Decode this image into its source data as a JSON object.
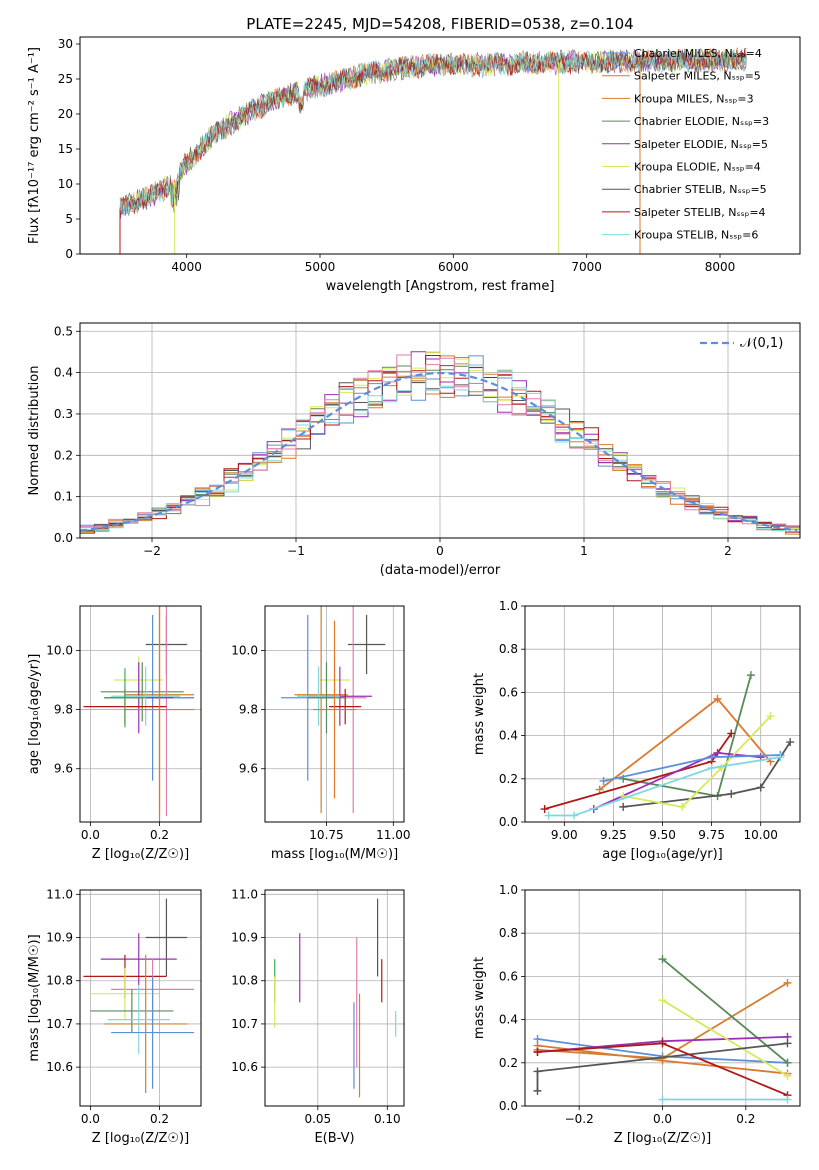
{
  "colors": {
    "Chabrier MILES": "#5b8fd9",
    "Salpeter MILES": "#e0772a",
    "Kroupa MILES": "#d08030",
    "Chabrier ELODIE": "#5a8a5a",
    "Salpeter ELODIE": "#9a2fb5",
    "Kroupa ELODIE": "#d6e95a",
    "Chabrier STELIB": "#555555",
    "Salpeter STELIB": "#b01818",
    "Kroupa STELIB": "#7fd8dd",
    "extra1": "#e07fa8",
    "extra2": "#44aa55",
    "normal": "#5b8fd9"
  },
  "chart_data": [
    {
      "id": "spectrum",
      "type": "line",
      "title": "PLATE=2245, MJD=54208, FIBERID=0538, z=0.104",
      "xlabel": "wavelength [Angstrom, rest frame]",
      "ylabel": "Flux [fλ10⁻¹⁷ erg cm⁻² s⁻¹ A⁻¹]",
      "xlim": [
        3200,
        8600
      ],
      "ylim": [
        0,
        31
      ],
      "xticks": [
        4000,
        5000,
        6000,
        7000,
        8000
      ],
      "yticks": [
        0,
        5,
        10,
        15,
        20,
        25,
        30
      ],
      "legend_position": "top-right",
      "legend": [
        {
          "name": "Chabrier MILES, Nₛₛₚ=4",
          "color": "Chabrier MILES"
        },
        {
          "name": "Salpeter MILES, Nₛₛₚ=5",
          "color": "Salpeter MILES"
        },
        {
          "name": "Kroupa MILES, Nₛₛₚ=3",
          "color": "Kroupa MILES"
        },
        {
          "name": "Chabrier ELODIE, Nₛₛₚ=3",
          "color": "Chabrier ELODIE"
        },
        {
          "name": "Salpeter ELODIE, Nₛₛₚ=5",
          "color": "Salpeter ELODIE"
        },
        {
          "name": "Kroupa ELODIE, Nₛₛₚ=4",
          "color": "Kroupa ELODIE"
        },
        {
          "name": "Chabrier STELIB, Nₛₛₚ=5",
          "color": "Chabrier STELIB"
        },
        {
          "name": "Salpeter STELIB, Nₛₛₚ=4",
          "color": "Salpeter STELIB"
        },
        {
          "name": "Kroupa STELIB, Nₛₛₚ=6",
          "color": "Kroupa STELIB"
        }
      ],
      "continuum": [
        [
          3500,
          6.5
        ],
        [
          3700,
          8
        ],
        [
          3900,
          10
        ],
        [
          4000,
          13
        ],
        [
          4200,
          17
        ],
        [
          4400,
          19.5
        ],
        [
          4600,
          21.5
        ],
        [
          4800,
          23
        ],
        [
          5000,
          24
        ],
        [
          5200,
          25
        ],
        [
          5400,
          26
        ],
        [
          5600,
          26.5
        ],
        [
          5800,
          27
        ],
        [
          6000,
          27
        ],
        [
          6200,
          27
        ],
        [
          6400,
          27.2
        ],
        [
          6600,
          27.3
        ],
        [
          6800,
          27.4
        ],
        [
          7000,
          27.4
        ],
        [
          7200,
          27.5
        ],
        [
          7400,
          27.5
        ],
        [
          7600,
          27.5
        ],
        [
          7800,
          27.6
        ],
        [
          8000,
          27.7
        ],
        [
          8200,
          27.7
        ]
      ],
      "x_range": [
        3500,
        8200
      ]
    },
    {
      "id": "residuals",
      "type": "bar",
      "xlabel": "(data-model)/error",
      "ylabel": "Normed distribution",
      "xlim": [
        -2.5,
        2.5
      ],
      "ylim": [
        0,
        0.52
      ],
      "xticks": [
        -2,
        -1,
        0,
        1,
        2
      ],
      "yticks": [
        0.0,
        0.1,
        0.2,
        0.3,
        0.4,
        0.5
      ],
      "grid": true,
      "legend_position": "top-right",
      "legend": [
        {
          "name": "𝒩(0,1)",
          "color": "normal"
        }
      ],
      "bin_width": 0.1,
      "reference_curve": "normal distribution N(0,1), dashed"
    },
    {
      "id": "age_vs_Z",
      "type": "scatter",
      "xlabel": "Z [log₁₀(Z/Z☉)]",
      "ylabel": "age  [log₁₀(age/yr)]",
      "xlim": [
        -0.03,
        0.32
      ],
      "ylim": [
        9.42,
        10.15
      ],
      "xticks": [
        0.0,
        0.2
      ],
      "yticks": [
        9.6,
        9.8,
        10.0
      ],
      "grid": true,
      "points": [
        {
          "x": 0.22,
          "y": 10.02,
          "xerr": 0.06,
          "yerr": 0.1,
          "color": "Chabrier STELIB"
        },
        {
          "x": 0.14,
          "y": 9.9,
          "xerr": 0.07,
          "yerr": 0.08,
          "color": "Kroupa ELODIE"
        },
        {
          "x": 0.15,
          "y": 9.86,
          "xerr": 0.12,
          "yerr": 0.1,
          "color": "Chabrier ELODIE"
        },
        {
          "x": 0.2,
          "y": 9.85,
          "xerr": 0.1,
          "yerr": 0.4,
          "color": "Kroupa MILES"
        },
        {
          "x": 0.22,
          "y": 9.84,
          "xerr": 0.08,
          "yerr": 0.4,
          "color": "Extra1"
        },
        {
          "x": 0.18,
          "y": 9.84,
          "xerr": 0.12,
          "yerr": 0.28,
          "color": "Chabrier MILES"
        },
        {
          "x": 0.14,
          "y": 9.84,
          "xerr": 0.1,
          "yerr": 0.12,
          "color": "Salpeter ELODIE"
        },
        {
          "x": 0.16,
          "y": 9.845,
          "xerr": 0.1,
          "yerr": 0.1,
          "color": "Kroupa STELIB"
        },
        {
          "x": 0.1,
          "y": 9.81,
          "xerr": 0.12,
          "yerr": 0.06,
          "color": "Salpeter STELIB"
        },
        {
          "x": 0.2,
          "y": 9.8,
          "xerr": 0.1,
          "yerr": 0.38,
          "color": "Salpeter MILES"
        },
        {
          "x": 0.1,
          "y": 9.84,
          "xerr": 0.06,
          "yerr": 0.1,
          "color": "extra2"
        }
      ]
    },
    {
      "id": "age_vs_mass",
      "type": "scatter",
      "xlabel": "mass [log₁₀(M/M☉)]",
      "ylabel": "",
      "xlim": [
        10.52,
        11.04
      ],
      "ylim": [
        9.42,
        10.15
      ],
      "xticks": [
        10.75,
        11.0
      ],
      "yticks": [
        9.6,
        9.8,
        10.0
      ],
      "grid": true,
      "points": [
        {
          "x": 10.9,
          "y": 10.02,
          "xerr": 0.07,
          "yerr": 0.1,
          "color": "Chabrier STELIB"
        },
        {
          "x": 10.78,
          "y": 9.9,
          "xerr": 0.06,
          "yerr": 0.08,
          "color": "Kroupa ELODIE"
        },
        {
          "x": 10.73,
          "y": 9.85,
          "xerr": 0.1,
          "yerr": 0.4,
          "color": "Kroupa MILES"
        },
        {
          "x": 10.85,
          "y": 9.84,
          "xerr": 0.05,
          "yerr": 0.39,
          "color": "Extra1"
        },
        {
          "x": 10.68,
          "y": 9.84,
          "xerr": 0.1,
          "yerr": 0.28,
          "color": "Chabrier MILES"
        },
        {
          "x": 10.8,
          "y": 9.845,
          "xerr": 0.12,
          "yerr": 0.1,
          "color": "Salpeter ELODIE"
        },
        {
          "x": 10.72,
          "y": 9.845,
          "xerr": 0.08,
          "yerr": 0.1,
          "color": "Kroupa STELIB"
        },
        {
          "x": 10.82,
          "y": 9.81,
          "xerr": 0.06,
          "yerr": 0.06,
          "color": "Salpeter STELIB"
        },
        {
          "x": 10.75,
          "y": 9.84,
          "xerr": 0.07,
          "yerr": 0.12,
          "color": "Chabrier ELODIE"
        },
        {
          "x": 10.78,
          "y": 9.8,
          "xerr": 0.08,
          "yerr": 0.3,
          "color": "Salpeter MILES"
        }
      ]
    },
    {
      "id": "mass_weight_vs_age",
      "type": "line",
      "xlabel": "age  [log₁₀(age/yr)]",
      "ylabel": "mass weight",
      "xlim": [
        8.8,
        10.2
      ],
      "ylim": [
        0,
        1
      ],
      "xticks": [
        9.0,
        9.25,
        9.5,
        9.75,
        10.0
      ],
      "yticks": [
        0.0,
        0.2,
        0.4,
        0.6,
        0.8,
        1.0
      ],
      "grid": true,
      "series": [
        {
          "color": "Salpeter MILES",
          "x": [
            9.18,
            9.78,
            10.05
          ],
          "y": [
            0.15,
            0.57,
            0.28
          ]
        },
        {
          "color": "Chabrier ELODIE",
          "x": [
            9.3,
            9.78,
            9.95
          ],
          "y": [
            0.2,
            0.12,
            0.68
          ]
        },
        {
          "color": "Chabrier STELIB",
          "x": [
            9.3,
            9.85,
            10.0,
            10.15
          ],
          "y": [
            0.07,
            0.13,
            0.16,
            0.37
          ]
        },
        {
          "color": "Salpeter STELIB",
          "x": [
            8.9,
            9.75,
            9.85
          ],
          "y": [
            0.06,
            0.28,
            0.41
          ]
        },
        {
          "color": "Salpeter ELODIE",
          "x": [
            9.15,
            9.78,
            10.0
          ],
          "y": [
            0.06,
            0.32,
            0.3
          ]
        },
        {
          "color": "Kroupa ELODIE",
          "x": [
            9.3,
            9.6,
            9.8,
            10.05
          ],
          "y": [
            0.12,
            0.07,
            0.25,
            0.49
          ]
        },
        {
          "color": "Chabrier MILES",
          "x": [
            9.2,
            9.75,
            10.1
          ],
          "y": [
            0.19,
            0.3,
            0.31
          ]
        },
        {
          "color": "Kroupa STELIB",
          "x": [
            8.92,
            9.05,
            9.75,
            10.1
          ],
          "y": [
            0.03,
            0.03,
            0.25,
            0.3
          ]
        }
      ]
    },
    {
      "id": "mass_vs_Z",
      "type": "scatter",
      "xlabel": "Z [log₁₀(Z/Z☉)]",
      "ylabel": "mass [log₁₀(M/M☉)]",
      "xlim": [
        -0.03,
        0.32
      ],
      "ylim": [
        10.51,
        11.01
      ],
      "xticks": [
        0.0,
        0.2
      ],
      "yticks": [
        10.6,
        10.7,
        10.8,
        10.9,
        11.0
      ],
      "grid": true,
      "points": [
        {
          "x": 0.22,
          "y": 10.9,
          "xerr": 0.06,
          "yerr": 0.09,
          "color": "Chabrier STELIB"
        },
        {
          "x": 0.14,
          "y": 10.85,
          "xerr": 0.11,
          "yerr": 0.06,
          "color": "Salpeter ELODIE"
        },
        {
          "x": 0.1,
          "y": 10.81,
          "xerr": 0.12,
          "yerr": 0.05,
          "color": "Salpeter STELIB"
        },
        {
          "x": 0.18,
          "y": 10.78,
          "xerr": 0.12,
          "yerr": 0.07,
          "color": "Extra1"
        },
        {
          "x": 0.1,
          "y": 10.77,
          "xerr": 0.1,
          "yerr": 0.06,
          "color": "Kroupa ELODIE"
        },
        {
          "x": 0.12,
          "y": 10.73,
          "xerr": 0.12,
          "yerr": 0.05,
          "color": "Chabrier ELODIE"
        },
        {
          "x": 0.16,
          "y": 10.7,
          "xerr": 0.12,
          "yerr": 0.16,
          "color": "Kroupa MILES"
        },
        {
          "x": 0.14,
          "y": 10.71,
          "xerr": 0.09,
          "yerr": 0.08,
          "color": "Kroupa STELIB"
        },
        {
          "x": 0.18,
          "y": 10.68,
          "xerr": 0.12,
          "yerr": 0.13,
          "color": "Chabrier MILES"
        }
      ]
    },
    {
      "id": "mass_vs_EBV",
      "type": "scatter",
      "xlabel": "E(B-V)",
      "ylabel": "",
      "xlim": [
        0.012,
        0.112
      ],
      "ylim": [
        10.51,
        11.01
      ],
      "xticks": [
        0.05,
        0.1
      ],
      "yticks": [
        10.6,
        10.7,
        10.8,
        10.9,
        11.0
      ],
      "grid": true,
      "points": [
        {
          "x": 0.019,
          "y": 10.8,
          "xerr": 0,
          "yerr": 0.05,
          "color": "extra2"
        },
        {
          "x": 0.019,
          "y": 10.75,
          "xerr": 0,
          "yerr": 0.06,
          "color": "Kroupa ELODIE"
        },
        {
          "x": 0.037,
          "y": 10.83,
          "xerr": 0,
          "yerr": 0.08,
          "color": "Salpeter ELODIE"
        },
        {
          "x": 0.076,
          "y": 10.65,
          "xerr": 0,
          "yerr": 0.1,
          "color": "Chabrier MILES"
        },
        {
          "x": 0.078,
          "y": 10.75,
          "xerr": 0,
          "yerr": 0.15,
          "color": "Extra1"
        },
        {
          "x": 0.08,
          "y": 10.65,
          "xerr": 0,
          "yerr": 0.12,
          "color": "Kroupa MILES"
        },
        {
          "x": 0.093,
          "y": 10.9,
          "xerr": 0,
          "yerr": 0.09,
          "color": "Chabrier STELIB"
        },
        {
          "x": 0.096,
          "y": 10.8,
          "xerr": 0,
          "yerr": 0.05,
          "color": "Salpeter STELIB"
        },
        {
          "x": 0.106,
          "y": 10.7,
          "xerr": 0,
          "yerr": 0.03,
          "color": "Kroupa STELIB"
        }
      ]
    },
    {
      "id": "mass_weight_vs_Z",
      "type": "line",
      "xlabel": "Z [log₁₀(Z/Z☉)]",
      "ylabel": "mass weight",
      "xlim": [
        -0.33,
        0.33
      ],
      "ylim": [
        0,
        1
      ],
      "xticks": [
        -0.2,
        0.0,
        0.2
      ],
      "yticks": [
        0.0,
        0.2,
        0.4,
        0.6,
        0.8,
        1.0
      ],
      "grid": true,
      "series": [
        {
          "color": "Chabrier MILES",
          "x": [
            -0.3,
            0.0,
            0.3
          ],
          "y": [
            0.31,
            0.23,
            0.2
          ]
        },
        {
          "color": "Salpeter MILES",
          "x": [
            -0.3,
            0.0,
            0.3
          ],
          "y": [
            0.28,
            0.21,
            0.15
          ]
        },
        {
          "color": "Kroupa MILES",
          "x": [
            -0.3,
            0.0,
            0.3
          ],
          "y": [
            0.26,
            0.22,
            0.57
          ]
        },
        {
          "color": "Chabrier ELODIE",
          "x": [
            0.0,
            0.3
          ],
          "y": [
            0.68,
            0.2
          ]
        },
        {
          "color": "Salpeter ELODIE",
          "x": [
            -0.3,
            0.0,
            0.3
          ],
          "y": [
            0.25,
            0.3,
            0.32
          ]
        },
        {
          "color": "Kroupa ELODIE",
          "x": [
            0.0,
            0.3
          ],
          "y": [
            0.49,
            0.14
          ]
        },
        {
          "color": "Chabrier STELIB",
          "x": [
            -0.3,
            -0.3,
            0.3
          ],
          "y": [
            0.07,
            0.16,
            0.29
          ]
        },
        {
          "color": "Salpeter STELIB",
          "x": [
            -0.3,
            0.0,
            0.3
          ],
          "y": [
            0.25,
            0.29,
            0.05
          ]
        },
        {
          "color": "Kroupa STELIB",
          "x": [
            0.0,
            0.3
          ],
          "y": [
            0.03,
            0.03
          ]
        }
      ]
    }
  ]
}
